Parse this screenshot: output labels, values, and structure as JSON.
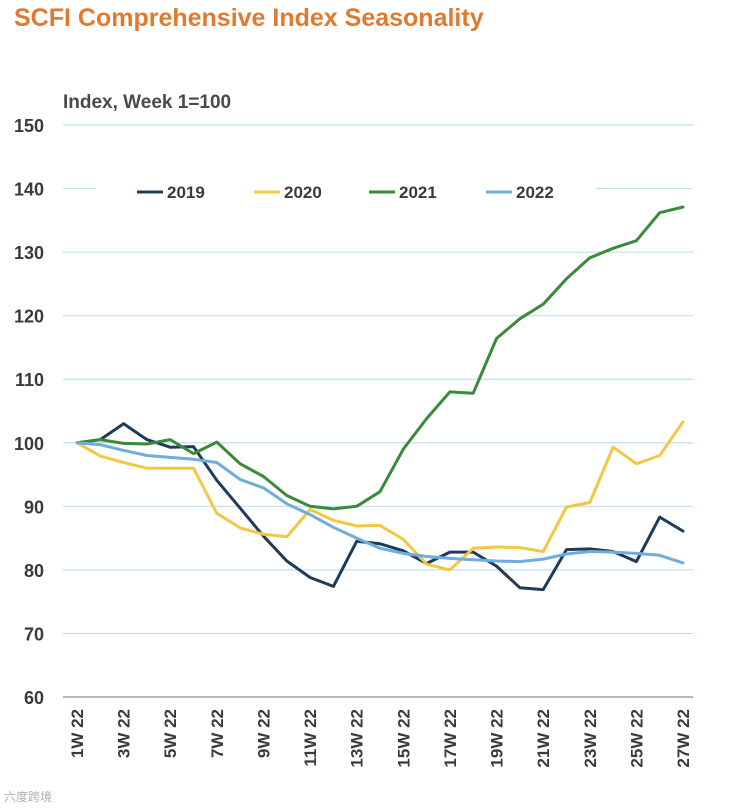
{
  "chart_data": {
    "type": "line",
    "title": "SCFI Comprehensive Index Seasonality",
    "ylabel": "Index, Week 1=100",
    "xlabel": "",
    "ylim": [
      60,
      150
    ],
    "yticks": [
      60,
      70,
      80,
      90,
      100,
      110,
      120,
      130,
      140,
      150
    ],
    "x": [
      "1W 22",
      "2W 22",
      "3W 22",
      "4W 22",
      "5W 22",
      "6W 22",
      "7W 22",
      "8W 22",
      "9W 22",
      "10W 22",
      "11W 22",
      "12W 22",
      "13W 22",
      "14W 22",
      "15W 22",
      "16W 22",
      "17W 22",
      "18W 22",
      "19W 22",
      "20W 22",
      "21W 22",
      "22W 22",
      "23W 22",
      "24W 22",
      "25W 22",
      "26W 22",
      "27W 22"
    ],
    "xtick_labels": [
      "1W 22",
      "3W 22",
      "5W 22",
      "7W 22",
      "9W 22",
      "11W 22",
      "13W 22",
      "15W 22",
      "17W 22",
      "19W 22",
      "21W 22",
      "23W 22",
      "25W 22",
      "27W 22"
    ],
    "grid": true,
    "legend_position": "top",
    "series": [
      {
        "name": "2019",
        "color": "#1F3B57",
        "values": [
          100,
          100.5,
          103,
          100.5,
          99.3,
          99.4,
          94.1,
          89.7,
          85.3,
          81.4,
          78.8,
          77.4,
          84.5,
          84.1,
          83.0,
          81.0,
          82.8,
          82.8,
          80.6,
          77.2,
          76.9,
          83.2,
          83.3,
          82.9,
          81.3,
          88.3,
          86.1
        ]
      },
      {
        "name": "2020",
        "color": "#F2C744",
        "values": [
          100,
          97.9,
          96.9,
          96.0,
          96.0,
          96.0,
          88.9,
          86.6,
          85.6,
          85.2,
          89.5,
          87.8,
          86.9,
          87.0,
          84.8,
          80.9,
          80.0,
          83.4,
          83.6,
          83.5,
          82.9,
          89.9,
          90.6,
          99.3,
          96.7,
          98.0,
          103.3
        ]
      },
      {
        "name": "2021",
        "color": "#3A8A3A",
        "values": [
          100,
          100.5,
          99.9,
          99.8,
          100.5,
          98.3,
          100.1,
          96.7,
          94.7,
          91.7,
          90.0,
          89.6,
          90.0,
          92.3,
          99.0,
          103.8,
          108.0,
          107.8,
          116.4,
          119.5,
          121.8,
          125.8,
          129.1,
          130.6,
          131.8,
          136.2,
          137.1
        ]
      },
      {
        "name": "2022",
        "color": "#6FAEDC",
        "values": [
          100,
          99.7,
          98.8,
          98.0,
          97.7,
          97.4,
          96.9,
          94.2,
          92.9,
          90.4,
          88.7,
          86.7,
          85.0,
          83.4,
          82.6,
          82.1,
          81.8,
          81.6,
          81.4,
          81.3,
          81.7,
          82.5,
          82.9,
          82.8,
          82.6,
          82.3,
          81.1
        ]
      }
    ]
  },
  "watermark": "六度跨境"
}
